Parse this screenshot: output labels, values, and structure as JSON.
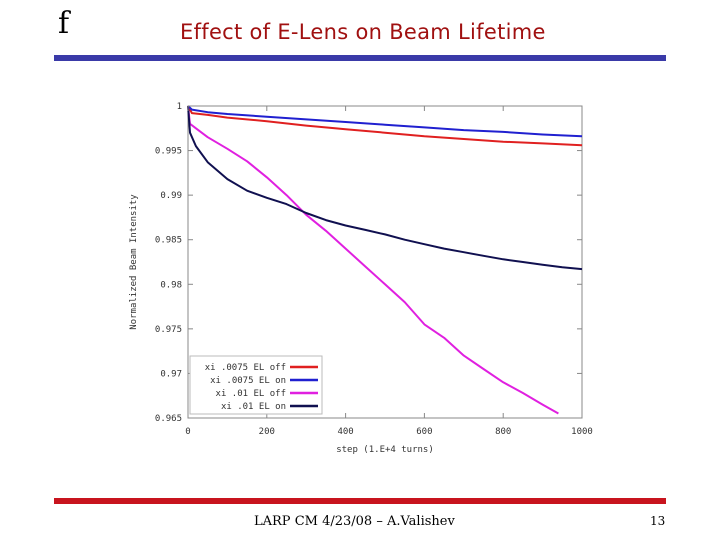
{
  "slide": {
    "logo_glyph": "f",
    "title": "Effect of E-Lens on Beam Lifetime",
    "footer": "LARP CM 4/23/08 – A.Valishev",
    "page_number": "13",
    "colors": {
      "title": "#a01010",
      "top_rule": "#3a3aa8",
      "bottom_rule": "#c8141e"
    }
  },
  "chart_data": {
    "type": "line",
    "title": "",
    "xlabel": "step (1.E+4 turns)",
    "ylabel": "Normalized Beam Intensity",
    "xlim": [
      0,
      1000
    ],
    "ylim": [
      0.965,
      1.0
    ],
    "x_ticks": [
      0,
      200,
      400,
      600,
      800,
      1000
    ],
    "x_tick_labels": [
      "0",
      "200",
      "400",
      "600",
      "800",
      "1000"
    ],
    "y_ticks": [
      0.965,
      0.97,
      0.975,
      0.98,
      0.985,
      0.99,
      0.995,
      1.0
    ],
    "y_tick_labels": [
      "0.965",
      "0.97",
      "0.975",
      "0.98",
      "0.985",
      "0.99",
      "0.995",
      "1"
    ],
    "legend_position": "bottom-left",
    "series": [
      {
        "name": "xi .0075 EL off",
        "color": "#e02020",
        "x": [
          0,
          10,
          50,
          100,
          200,
          300,
          400,
          500,
          600,
          700,
          800,
          900,
          1000
        ],
        "y": [
          1.0,
          0.9992,
          0.999,
          0.9987,
          0.9983,
          0.9978,
          0.9974,
          0.997,
          0.9966,
          0.9963,
          0.996,
          0.9958,
          0.9956
        ]
      },
      {
        "name": "xi .0075 EL on",
        "color": "#2020d0",
        "x": [
          0,
          10,
          50,
          100,
          200,
          300,
          400,
          500,
          600,
          700,
          800,
          900,
          1000
        ],
        "y": [
          1.0,
          0.9996,
          0.9993,
          0.9991,
          0.9988,
          0.9985,
          0.9982,
          0.9979,
          0.9976,
          0.9973,
          0.9971,
          0.9968,
          0.9966
        ]
      },
      {
        "name": "xi .01 EL off",
        "color": "#e020e0",
        "x": [
          0,
          5,
          20,
          50,
          100,
          150,
          200,
          250,
          300,
          350,
          400,
          450,
          500,
          550,
          600,
          650,
          700,
          750,
          800,
          850,
          900,
          940
        ],
        "y": [
          1.0,
          0.998,
          0.9975,
          0.9965,
          0.9952,
          0.9938,
          0.992,
          0.99,
          0.9878,
          0.986,
          0.984,
          0.982,
          0.98,
          0.978,
          0.9755,
          0.974,
          0.972,
          0.9705,
          0.969,
          0.9678,
          0.9665,
          0.9655
        ]
      },
      {
        "name": "xi .01 EL on",
        "color": "#101050",
        "x": [
          0,
          5,
          20,
          50,
          100,
          150,
          200,
          250,
          300,
          350,
          400,
          450,
          500,
          550,
          600,
          650,
          700,
          750,
          800,
          850,
          900,
          950,
          1000
        ],
        "y": [
          1.0,
          0.997,
          0.9955,
          0.9937,
          0.9918,
          0.9905,
          0.9897,
          0.989,
          0.988,
          0.9872,
          0.9866,
          0.9861,
          0.9856,
          0.985,
          0.9845,
          0.984,
          0.9836,
          0.9832,
          0.9828,
          0.9825,
          0.9822,
          0.9819,
          0.9817
        ]
      }
    ]
  }
}
